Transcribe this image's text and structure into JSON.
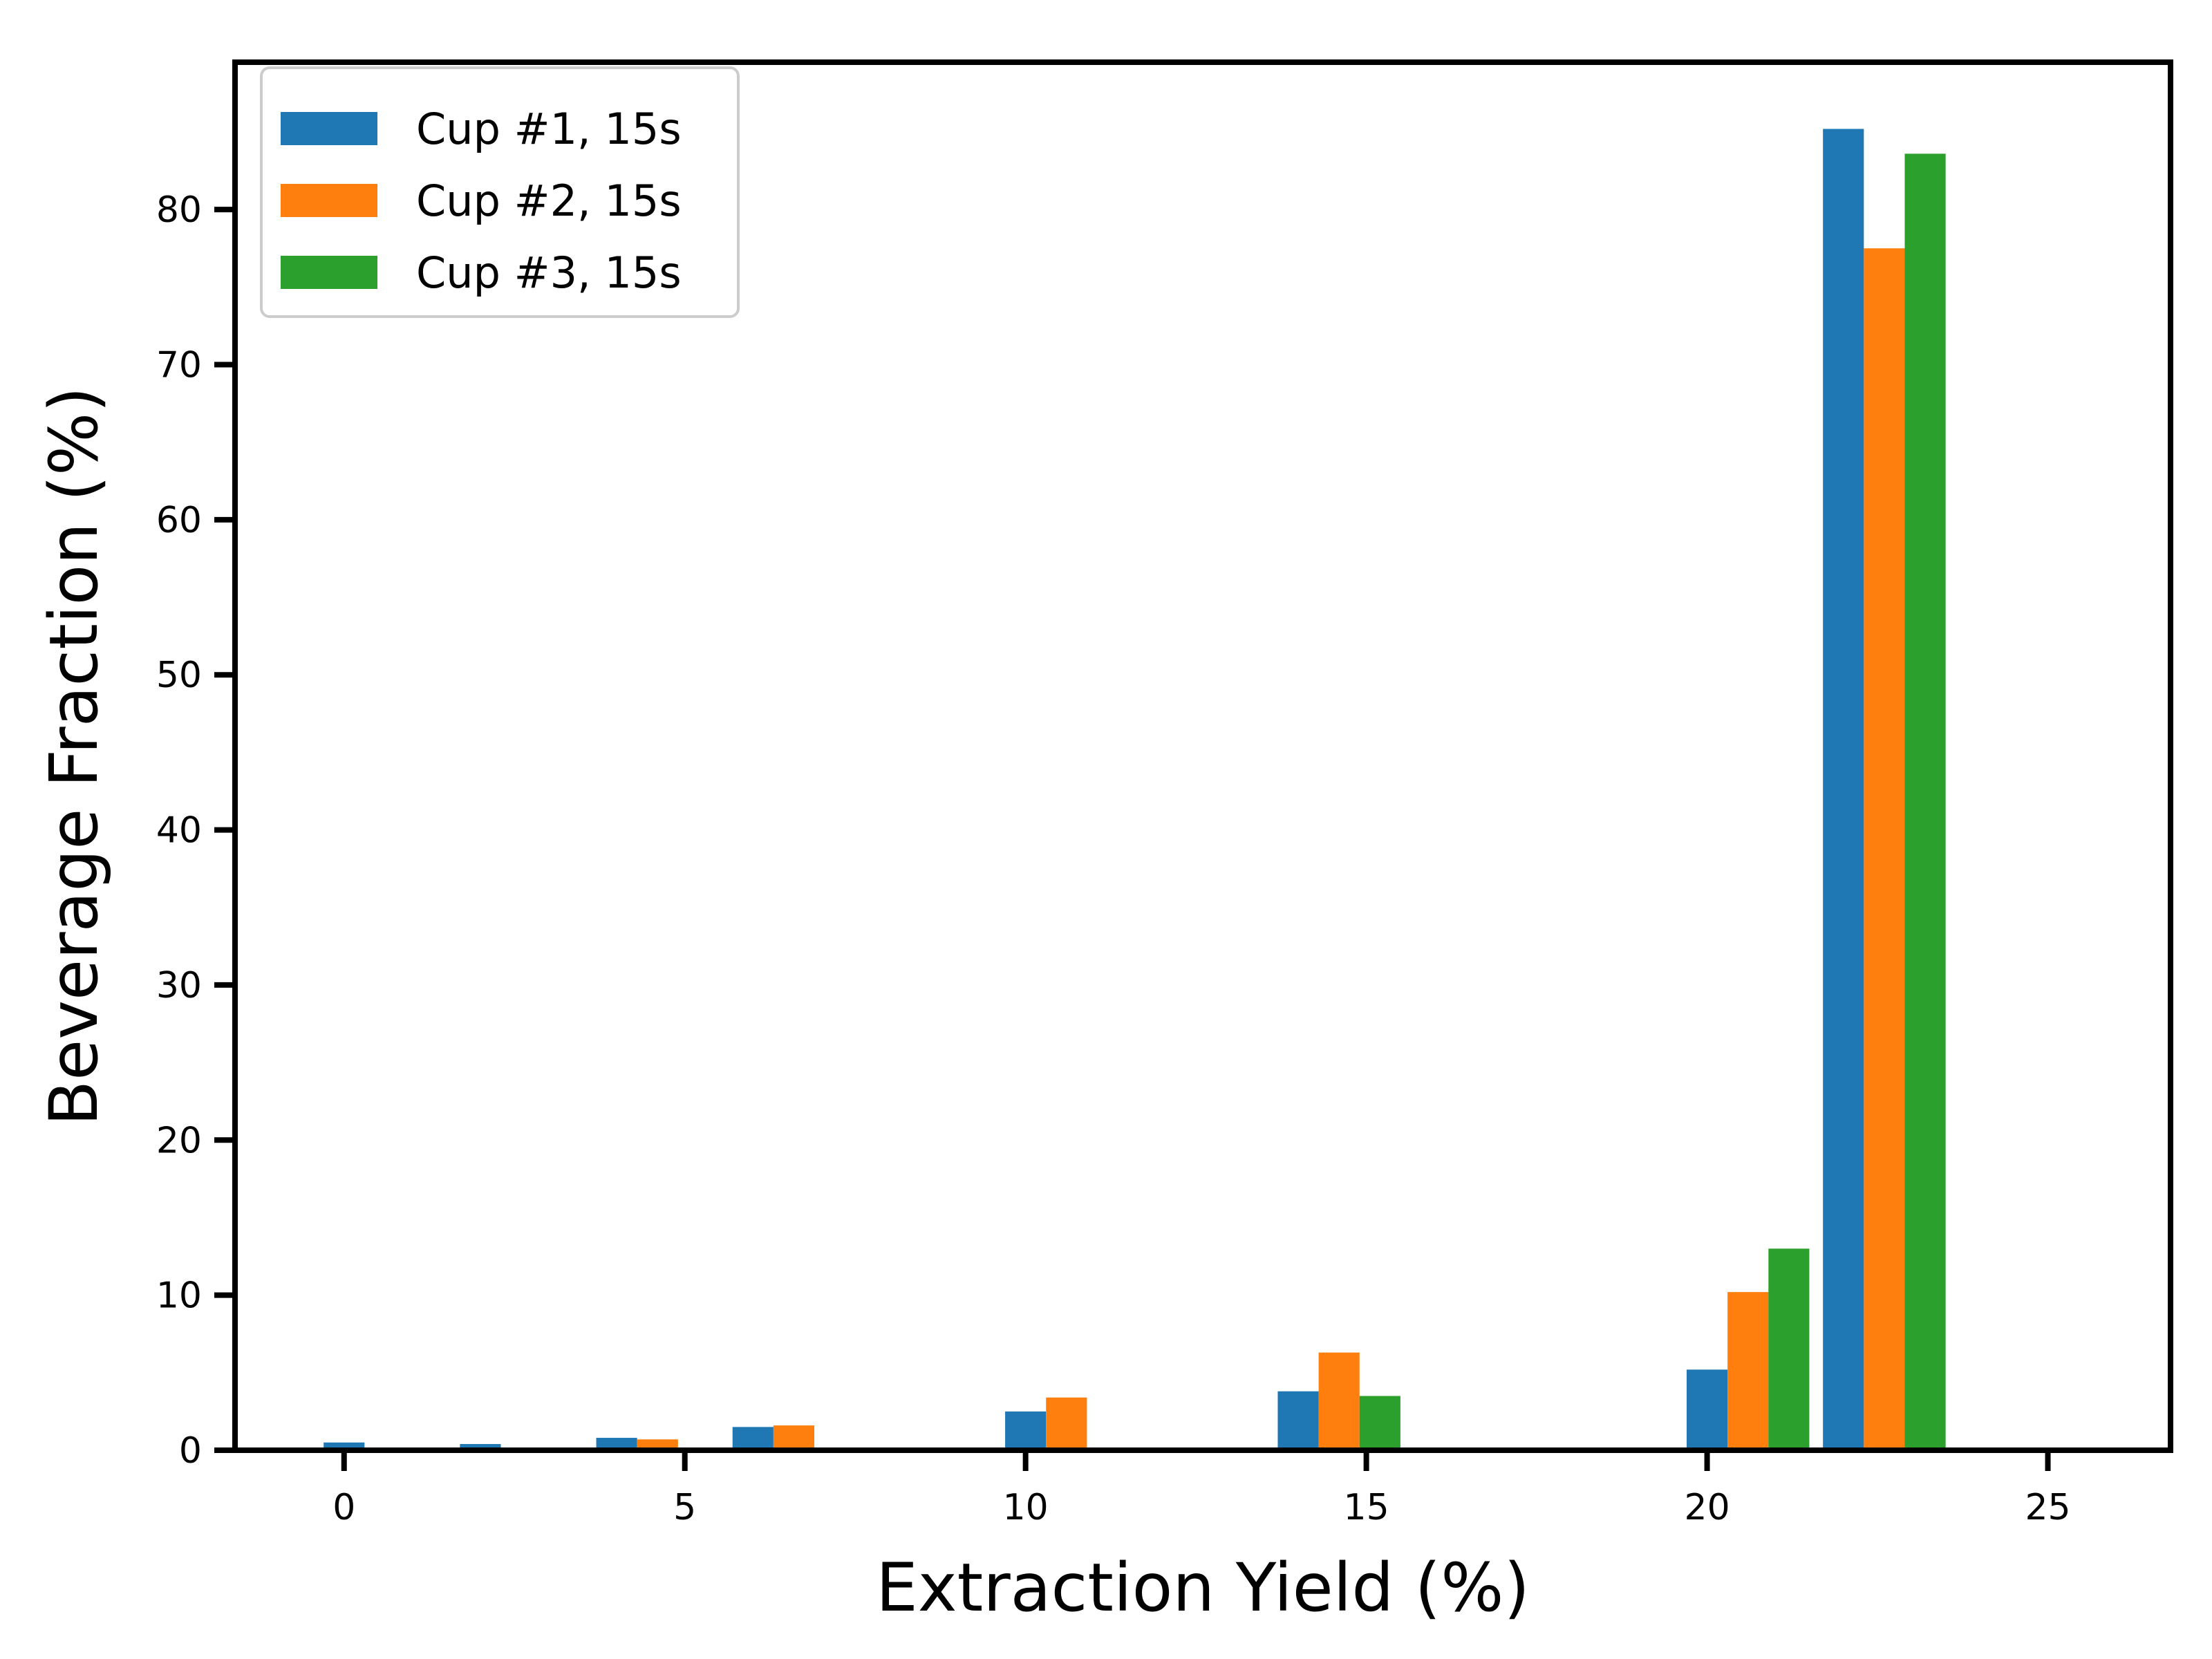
{
  "chart_data": {
    "type": "bar",
    "xlabel": "Extraction Yield (%)",
    "ylabel": "Beverage Fraction (%)",
    "xlim": [
      -1.6,
      26.8
    ],
    "ylim": [
      0,
      89.5
    ],
    "xticks": [
      0,
      5,
      10,
      15,
      20,
      25
    ],
    "yticks": [
      0,
      10,
      20,
      30,
      40,
      50,
      60,
      70,
      80
    ],
    "bar_width": 0.6,
    "legend_position": "upper left",
    "grid": false,
    "series": [
      {
        "name": "Cup #1, 15s",
        "color": "#1f77b4",
        "points": [
          {
            "x": 0,
            "y": 0.5
          },
          {
            "x": 2,
            "y": 0.4
          },
          {
            "x": 4,
            "y": 0.8
          },
          {
            "x": 6,
            "y": 1.5
          },
          {
            "x": 10,
            "y": 2.5
          },
          {
            "x": 14,
            "y": 3.8
          },
          {
            "x": 20,
            "y": 5.2
          },
          {
            "x": 22,
            "y": 85.2
          }
        ]
      },
      {
        "name": "Cup #2, 15s",
        "color": "#ff7f0e",
        "points": [
          {
            "x": 4.6,
            "y": 0.7
          },
          {
            "x": 6.6,
            "y": 1.6
          },
          {
            "x": 10.6,
            "y": 3.4
          },
          {
            "x": 14.6,
            "y": 6.3
          },
          {
            "x": 20.6,
            "y": 10.2
          },
          {
            "x": 22.6,
            "y": 77.5
          }
        ]
      },
      {
        "name": "Cup #3, 15s",
        "color": "#2ca02c",
        "points": [
          {
            "x": 15.2,
            "y": 3.5
          },
          {
            "x": 21.2,
            "y": 13.0
          },
          {
            "x": 23.2,
            "y": 83.6
          }
        ]
      }
    ]
  }
}
